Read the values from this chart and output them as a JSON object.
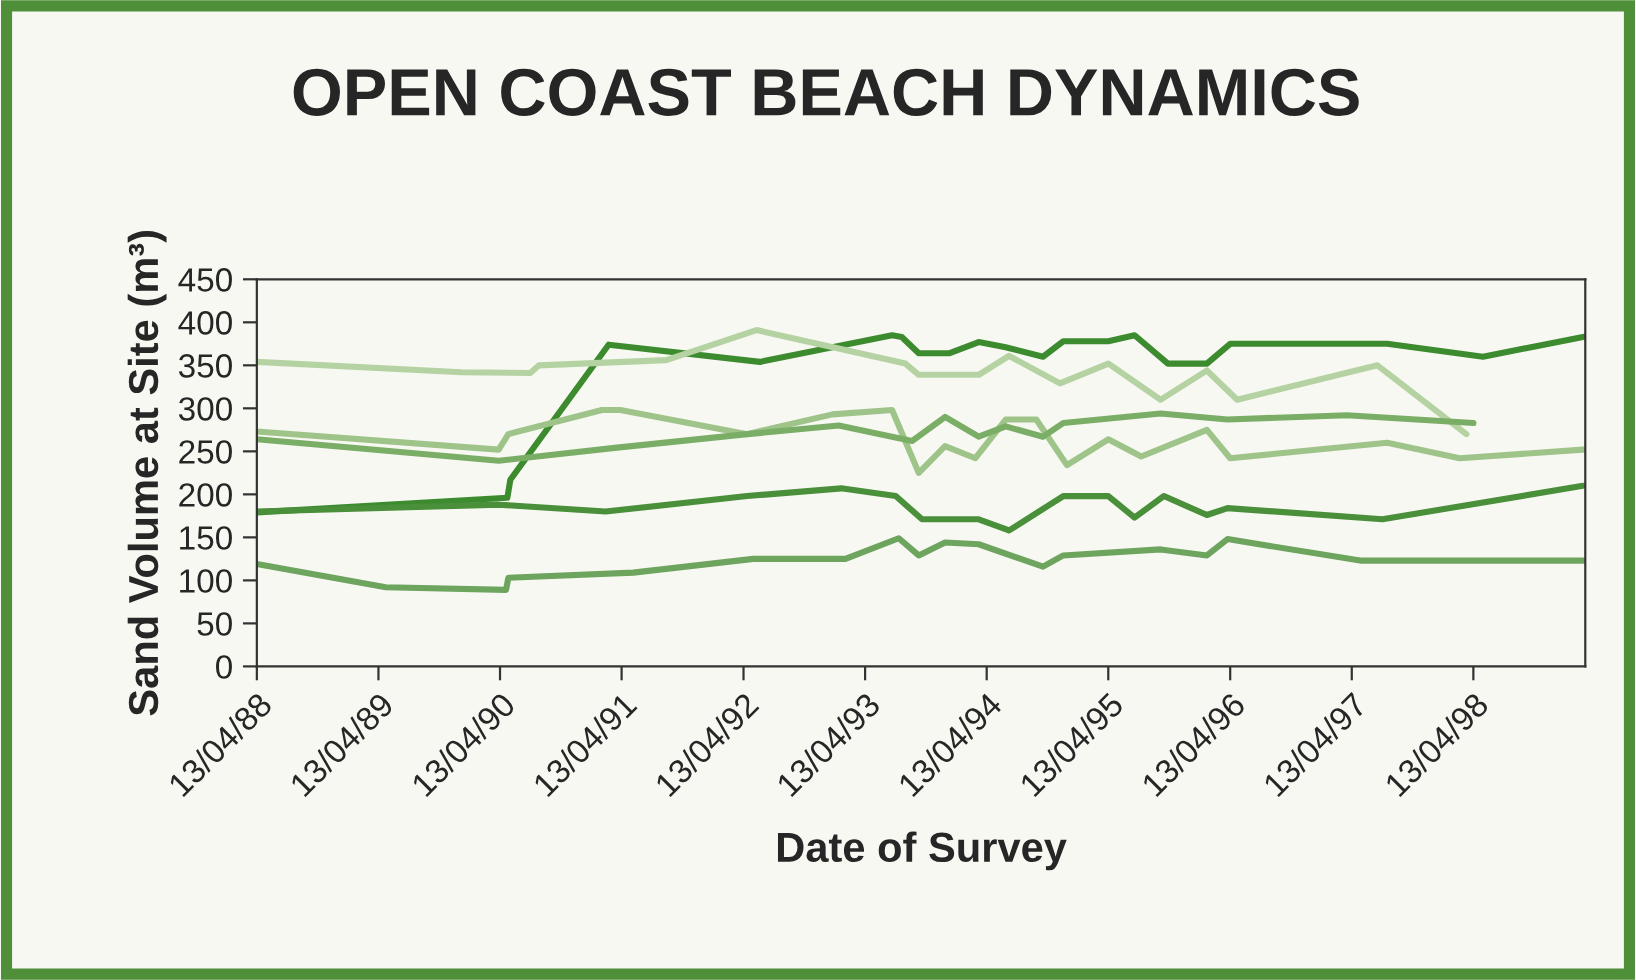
{
  "chart_data": {
    "type": "line",
    "title": "OPEN COAST BEACH DYNAMICS",
    "xlabel": "Date of Survey",
    "ylabel": "Sand Volume at Site (m³)",
    "xlim": [
      "1988-04-13",
      "1999-03-15"
    ],
    "ylim": [
      0,
      450
    ],
    "xticks": [
      {
        "value": "1988-04-13",
        "label": "13/04/88"
      },
      {
        "value": "1989-04-13",
        "label": "13/04/89"
      },
      {
        "value": "1990-04-13",
        "label": "13/04/90"
      },
      {
        "value": "1991-04-13",
        "label": "13/04/91"
      },
      {
        "value": "1992-04-13",
        "label": "13/04/92"
      },
      {
        "value": "1993-04-13",
        "label": "13/04/93"
      },
      {
        "value": "1994-04-13",
        "label": "13/04/94"
      },
      {
        "value": "1995-04-13",
        "label": "13/04/95"
      },
      {
        "value": "1996-04-13",
        "label": "13/04/96"
      },
      {
        "value": "1997-04-13",
        "label": "13/04/97"
      },
      {
        "value": "1998-04-13",
        "label": "13/04/98"
      }
    ],
    "yticks": [
      0,
      50,
      100,
      150,
      200,
      250,
      300,
      350,
      400,
      450
    ],
    "grid": false,
    "legend": false,
    "marker": "none",
    "line_style": "solid",
    "series": [
      {
        "color": "#3d8b2f",
        "x": [
          "1988-04-13",
          "1990-05-05",
          "1990-05-14",
          "1991-03-05",
          "1992-06-01",
          "1993-07-03",
          "1993-08-01",
          "1993-09-21",
          "1993-12-21",
          "1994-03-20",
          "1994-06-09",
          "1994-09-29",
          "1994-11-29",
          "1995-04-13",
          "1995-07-01",
          "1995-10-09",
          "1996-02-03",
          "1996-04-13",
          "1997-07-28",
          "1998-05-12",
          "1999-03-08"
        ],
        "values": [
          179,
          196,
          217,
          374,
          354,
          385,
          383,
          364,
          364,
          377,
          371,
          360,
          378,
          378,
          385,
          352,
          352,
          375,
          375,
          360,
          383
        ]
      },
      {
        "color": "#b5d3a2",
        "x": [
          "1988-04-13",
          "1989-12-18",
          "1990-07-13",
          "1990-08-08",
          "1991-08-25",
          "1992-05-22",
          "1993-08-12",
          "1993-09-21",
          "1994-03-20",
          "1994-06-19",
          "1994-11-19",
          "1995-04-13",
          "1995-09-17",
          "1996-02-03",
          "1996-05-04",
          "1997-06-29",
          "1998-03-23"
        ],
        "values": [
          354,
          342,
          341,
          350,
          356,
          391,
          352,
          339,
          339,
          361,
          329,
          352,
          310,
          344,
          310,
          350,
          270
        ]
      },
      {
        "color": "#9fc48a",
        "x": [
          "1988-04-13",
          "1990-04-09",
          "1990-05-08",
          "1991-02-13",
          "1991-04-09",
          "1992-04-24",
          "1993-01-05",
          "1993-07-03",
          "1993-09-21",
          "1993-12-09",
          "1994-03-10",
          "1994-06-09",
          "1994-09-09",
          "1994-12-10",
          "1995-04-13",
          "1995-07-21",
          "1996-02-03",
          "1996-04-13",
          "1997-07-28",
          "1998-03-03",
          "1999-03-08"
        ],
        "values": [
          273,
          252,
          270,
          298,
          298,
          270,
          293,
          298,
          225,
          256,
          242,
          287,
          287,
          234,
          264,
          244,
          275,
          242,
          260,
          242,
          252
        ]
      },
      {
        "color": "#7aae67",
        "x": [
          "1988-04-13",
          "1990-04-09",
          "1991-03-23",
          "1992-04-24",
          "1993-01-24",
          "1993-09-01",
          "1993-12-09",
          "1994-03-20",
          "1994-06-09",
          "1994-09-29",
          "1994-11-29",
          "1995-09-17",
          "1996-04-05",
          "1997-03-29",
          "1998-04-13"
        ],
        "values": [
          264,
          239,
          254,
          270,
          280,
          262,
          290,
          267,
          279,
          267,
          283,
          294,
          287,
          292,
          283
        ]
      },
      {
        "color": "#4a8f3a",
        "x": [
          "1988-04-13",
          "1990-04-09",
          "1991-02-24",
          "1992-04-24",
          "1993-01-31",
          "1993-07-14",
          "1993-10-01",
          "1994-03-20",
          "1994-06-19",
          "1994-11-29",
          "1995-04-13",
          "1995-07-01",
          "1995-09-27",
          "1996-02-03",
          "1996-04-05",
          "1997-07-14",
          "1999-03-08"
        ],
        "values": [
          180,
          188,
          180,
          198,
          207,
          198,
          171,
          171,
          158,
          198,
          198,
          173,
          198,
          176,
          184,
          171,
          210
        ]
      },
      {
        "color": "#6da45e",
        "x": [
          "1988-04-13",
          "1989-05-05",
          "1990-05-01",
          "1990-05-08",
          "1991-05-18",
          "1992-05-12",
          "1993-02-13",
          "1993-07-23",
          "1993-09-21",
          "1993-12-09",
          "1994-03-20",
          "1994-09-29",
          "1994-11-29",
          "1995-09-17",
          "1996-02-03",
          "1996-04-05",
          "1997-05-08",
          "1999-03-08"
        ],
        "values": [
          119,
          92,
          89,
          103,
          109,
          125,
          125,
          149,
          129,
          144,
          142,
          116,
          129,
          136,
          129,
          148,
          123,
          123
        ]
      }
    ]
  }
}
